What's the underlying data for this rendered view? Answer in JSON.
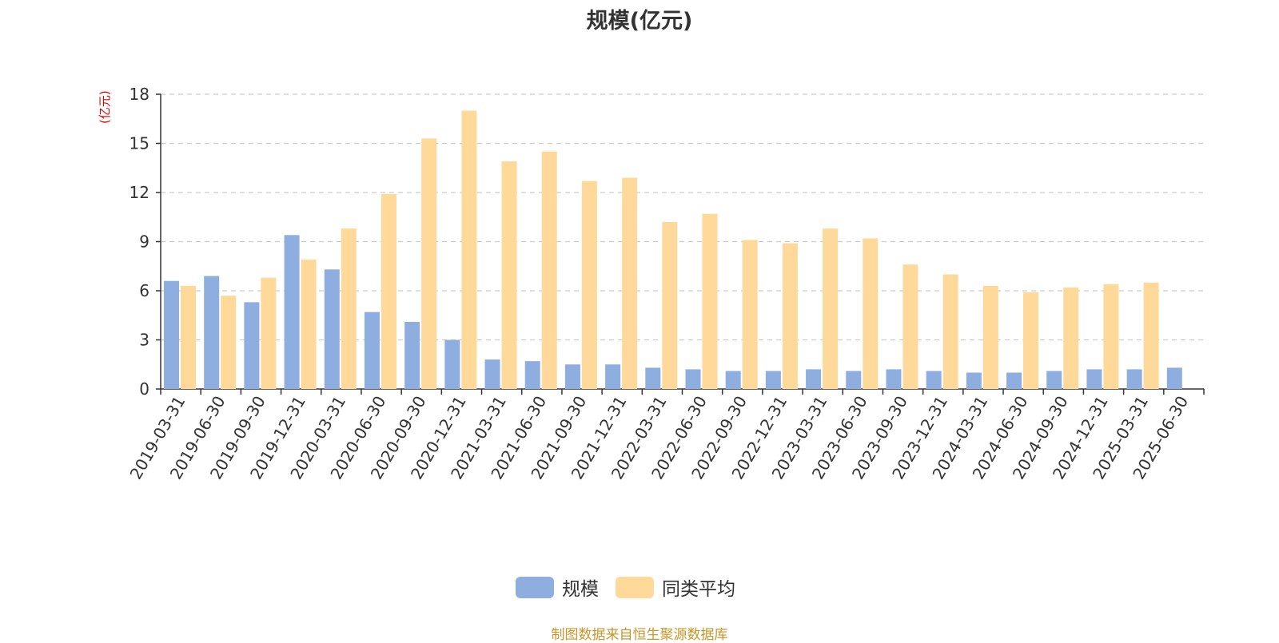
{
  "chart_data": {
    "type": "bar",
    "title": "规模(亿元)",
    "ylabel": "(亿元)",
    "ylim": [
      0,
      18
    ],
    "yticks": [
      0,
      3,
      6,
      9,
      12,
      15,
      18
    ],
    "grid": "horizontal-dashed",
    "legend_position": "bottom",
    "categories": [
      "2019-03-31",
      "2019-06-30",
      "2019-09-30",
      "2019-12-31",
      "2020-03-31",
      "2020-06-30",
      "2020-09-30",
      "2020-12-31",
      "2021-03-31",
      "2021-06-30",
      "2021-09-30",
      "2021-12-31",
      "2022-03-31",
      "2022-06-30",
      "2022-09-30",
      "2022-12-31",
      "2023-03-31",
      "2023-06-30",
      "2023-09-30",
      "2023-12-31",
      "2024-03-31",
      "2024-06-30",
      "2024-09-30",
      "2024-12-31",
      "2025-03-31",
      "2025-06-30"
    ],
    "series": [
      {
        "name": "规模",
        "color": "#8eaedf",
        "values": [
          6.6,
          6.9,
          5.3,
          9.4,
          7.3,
          4.7,
          4.1,
          3.0,
          1.8,
          1.7,
          1.5,
          1.5,
          1.3,
          1.2,
          1.1,
          1.1,
          1.2,
          1.1,
          1.2,
          1.1,
          1.0,
          1.0,
          1.1,
          1.2,
          1.2,
          1.3
        ]
      },
      {
        "name": "同类平均",
        "color": "#ffd99a",
        "values": [
          6.3,
          5.7,
          6.8,
          7.9,
          9.8,
          11.9,
          15.3,
          17.0,
          13.9,
          14.5,
          12.7,
          12.9,
          10.2,
          10.7,
          9.1,
          8.9,
          9.8,
          9.2,
          7.6,
          7.0,
          6.3,
          5.9,
          6.2,
          6.4,
          6.5,
          null
        ]
      }
    ]
  },
  "legend": {
    "items": [
      {
        "label": "规模",
        "color": "#8eaedf"
      },
      {
        "label": "同类平均",
        "color": "#ffd99a"
      }
    ]
  },
  "source_note": "制图数据来自恒生聚源数据库"
}
